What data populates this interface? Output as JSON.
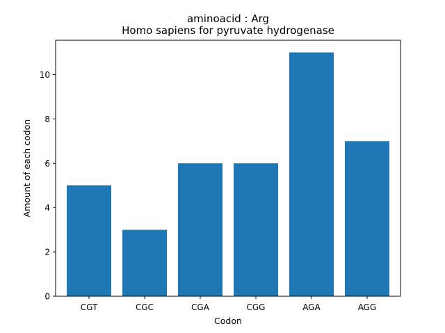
{
  "chart_data": {
    "type": "bar",
    "title": "aminoacid : Arg",
    "subtitle": "Homo sapiens for pyruvate hydrogenase",
    "xlabel": "Codon",
    "ylabel": "Amount of each codon",
    "categories": [
      "CGT",
      "CGC",
      "CGA",
      "CGG",
      "AGA",
      "AGG"
    ],
    "values": [
      5,
      3,
      6,
      6,
      11,
      7
    ],
    "yticks": [
      0,
      2,
      4,
      6,
      8,
      10
    ],
    "ylim": [
      0,
      11.55
    ],
    "bar_color": "#1f77b4",
    "grid": false,
    "legend": "none"
  }
}
